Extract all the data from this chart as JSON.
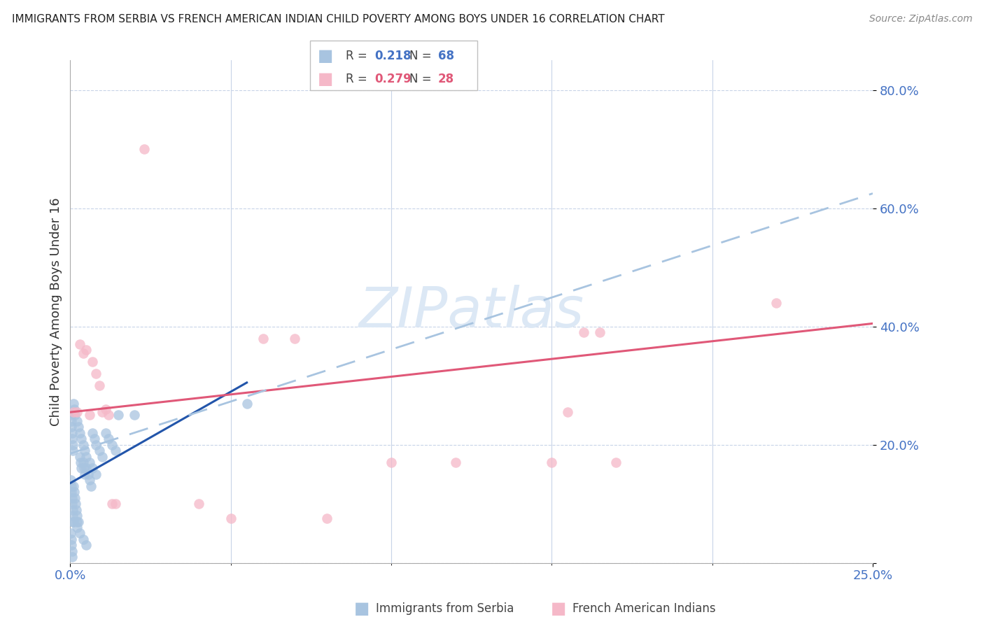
{
  "title": "IMMIGRANTS FROM SERBIA VS FRENCH AMERICAN INDIAN CHILD POVERTY AMONG BOYS UNDER 16 CORRELATION CHART",
  "source": "Source: ZipAtlas.com",
  "ylabel": "Child Poverty Among Boys Under 16",
  "legend1_r": "0.218",
  "legend1_n": "68",
  "legend2_r": "0.279",
  "legend2_n": "28",
  "blue_color": "#a8c4e0",
  "pink_color": "#f5b8c8",
  "blue_line_color": "#2255aa",
  "pink_line_color": "#e05878",
  "dashed_line_color": "#a8c4e0",
  "tick_color": "#4472c4",
  "watermark_color": "#dce8f5",
  "xmin": 0.0,
  "xmax": 0.25,
  "ymin": 0.0,
  "ymax": 0.85,
  "ytick_vals": [
    0.0,
    0.2,
    0.4,
    0.6,
    0.8
  ],
  "ytick_labels": [
    "",
    "20.0%",
    "40.0%",
    "60.0%",
    "80.0%"
  ],
  "xtick_vals": [
    0.0,
    0.25
  ],
  "xtick_labels": [
    "0.0%",
    "25.0%"
  ],
  "blue_trend_x0": 0.0,
  "blue_trend_x1": 0.055,
  "blue_trend_y0": 0.135,
  "blue_trend_y1": 0.305,
  "pink_trend_x0": 0.0,
  "pink_trend_x1": 0.25,
  "pink_trend_y0": 0.255,
  "pink_trend_y1": 0.405,
  "dashed_trend_x0": 0.0,
  "dashed_trend_x1": 0.25,
  "dashed_trend_y0": 0.185,
  "dashed_trend_y1": 0.625,
  "blue_x": [
    0.0002,
    0.0003,
    0.0004,
    0.0005,
    0.0006,
    0.0007,
    0.0008,
    0.0009,
    0.001,
    0.0012,
    0.0014,
    0.0016,
    0.0018,
    0.002,
    0.0022,
    0.0025,
    0.003,
    0.0032,
    0.0035,
    0.004,
    0.0042,
    0.0045,
    0.005,
    0.0055,
    0.006,
    0.0065,
    0.007,
    0.0075,
    0.008,
    0.009,
    0.01,
    0.011,
    0.012,
    0.013,
    0.014,
    0.015,
    0.0002,
    0.0003,
    0.0004,
    0.0005,
    0.0006,
    0.0007,
    0.0008,
    0.001,
    0.0012,
    0.0014,
    0.002,
    0.0025,
    0.003,
    0.0035,
    0.004,
    0.0045,
    0.005,
    0.006,
    0.007,
    0.008,
    0.0002,
    0.0003,
    0.0004,
    0.0005,
    0.0006,
    0.001,
    0.002,
    0.003,
    0.004,
    0.005,
    0.055,
    0.02
  ],
  "blue_y": [
    0.14,
    0.13,
    0.12,
    0.11,
    0.1,
    0.09,
    0.08,
    0.07,
    0.13,
    0.12,
    0.11,
    0.1,
    0.09,
    0.08,
    0.07,
    0.07,
    0.18,
    0.17,
    0.16,
    0.17,
    0.16,
    0.15,
    0.16,
    0.15,
    0.14,
    0.13,
    0.22,
    0.21,
    0.2,
    0.19,
    0.18,
    0.22,
    0.21,
    0.2,
    0.19,
    0.25,
    0.25,
    0.24,
    0.23,
    0.22,
    0.21,
    0.2,
    0.19,
    0.27,
    0.26,
    0.25,
    0.24,
    0.23,
    0.22,
    0.21,
    0.2,
    0.19,
    0.18,
    0.17,
    0.16,
    0.15,
    0.05,
    0.04,
    0.03,
    0.02,
    0.01,
    0.07,
    0.06,
    0.05,
    0.04,
    0.03,
    0.27,
    0.25
  ],
  "pink_x": [
    0.001,
    0.002,
    0.003,
    0.004,
    0.005,
    0.006,
    0.007,
    0.008,
    0.009,
    0.01,
    0.011,
    0.012,
    0.013,
    0.014,
    0.023,
    0.04,
    0.05,
    0.06,
    0.07,
    0.08,
    0.1,
    0.12,
    0.15,
    0.155,
    0.16,
    0.22,
    0.165,
    0.17
  ],
  "pink_y": [
    0.255,
    0.255,
    0.37,
    0.355,
    0.36,
    0.25,
    0.34,
    0.32,
    0.3,
    0.255,
    0.26,
    0.25,
    0.1,
    0.1,
    0.7,
    0.1,
    0.075,
    0.38,
    0.38,
    0.075,
    0.17,
    0.17,
    0.17,
    0.255,
    0.39,
    0.44,
    0.39,
    0.17
  ]
}
